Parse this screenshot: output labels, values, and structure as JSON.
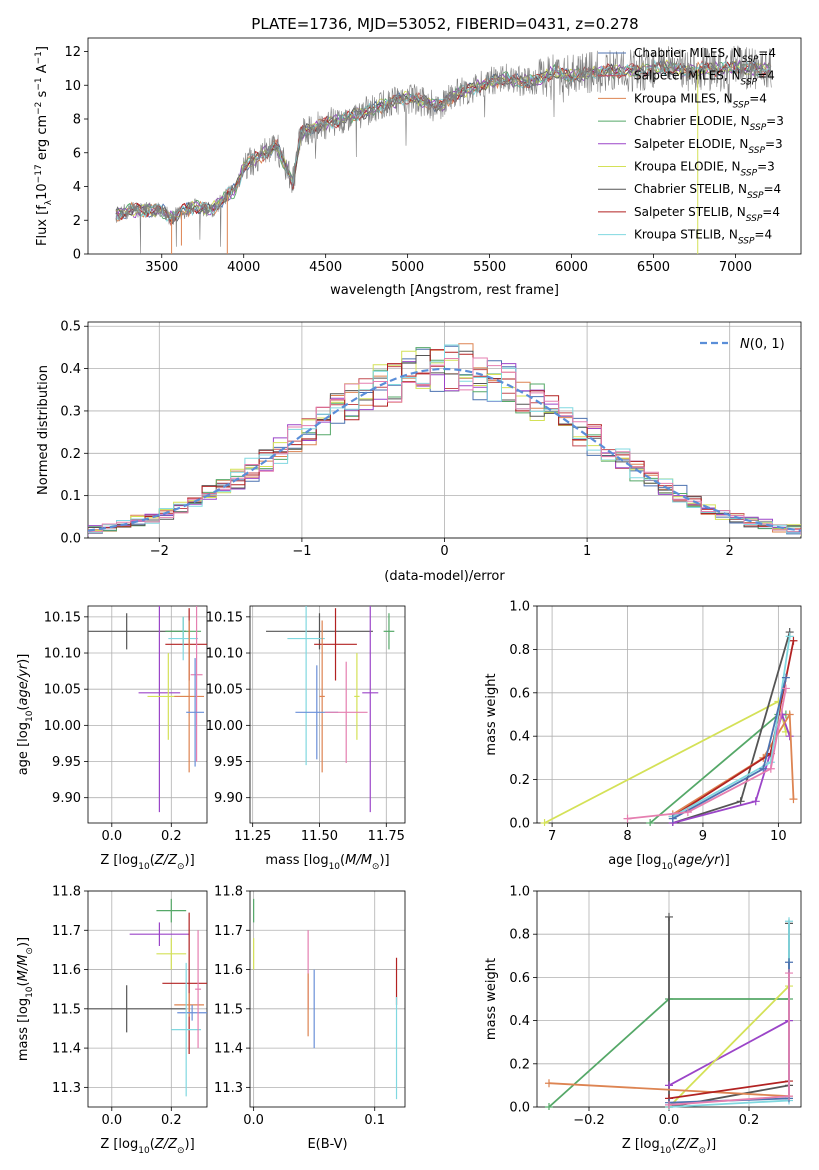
{
  "figure_title": "PLATE=1736, MJD=53052, FIBERID=0431, z=0.278",
  "colors": {
    "Chabrier MILES": "#4c72b0",
    "Salpeter MILES": "#c44e52",
    "Kroupa MILES": "#dd8452",
    "Chabrier ELODIE": "#55a868",
    "Salpeter ELODIE": "#9b45c8",
    "Kroupa ELODIE": "#d4e157",
    "Chabrier STELIB": "#555555",
    "Salpeter STELIB": "#b22222",
    "Kroupa STELIB": "#80d8e0",
    "extra_pink": "#e57fb0",
    "extra_blue": "#6a8fd8",
    "normal_curve": "#5a8ed8"
  },
  "chart_data": [
    {
      "id": "spectrum",
      "type": "line",
      "title": "PLATE=1736, MJD=53052, FIBERID=0431, z=0.278",
      "xlabel": "wavelength [Angstrom, rest frame]",
      "ylabel": "Flux [f_λ10^-17 erg cm^-2 s^-1 A^-1]",
      "xlim": [
        3050,
        7400
      ],
      "ylim": [
        0,
        12.8
      ],
      "xticks": [
        3500,
        4000,
        4500,
        5000,
        5500,
        6000,
        6500,
        7000
      ],
      "yticks": [
        0,
        2,
        4,
        6,
        8,
        10,
        12
      ],
      "legend_position": "right",
      "legend": [
        {
          "name": "Chabrier MILES",
          "nssp": "4"
        },
        {
          "name": "Salpeter MILES",
          "nssp": "4"
        },
        {
          "name": "Kroupa MILES",
          "nssp": "4"
        },
        {
          "name": "Chabrier ELODIE",
          "nssp": "3"
        },
        {
          "name": "Salpeter ELODIE",
          "nssp": "3"
        },
        {
          "name": "Kroupa ELODIE",
          "nssp": "3"
        },
        {
          "name": "Chabrier STELIB",
          "nssp": "4"
        },
        {
          "name": "Salpeter STELIB",
          "nssp": "4"
        },
        {
          "name": "Kroupa STELIB",
          "nssp": "4"
        }
      ],
      "continuum_x": [
        3220,
        3300,
        3400,
        3500,
        3560,
        3600,
        3700,
        3800,
        3850,
        3900,
        3950,
        4000,
        4100,
        4200,
        4300,
        4350,
        4400,
        4500,
        4600,
        4700,
        4800,
        4900,
        5000,
        5100,
        5200,
        5300,
        5400,
        5500,
        5600,
        5700,
        5800,
        5900,
        6000,
        6100,
        6200,
        6300,
        6400,
        6500,
        6600,
        6700,
        6800,
        6900,
        7000,
        7100,
        7220
      ],
      "continuum_y": [
        2.3,
        2.6,
        2.6,
        2.6,
        2.1,
        2.4,
        2.8,
        2.6,
        3.0,
        3.5,
        3.8,
        5.2,
        5.8,
        6.4,
        4.2,
        7.2,
        7.4,
        7.7,
        8.0,
        8.3,
        8.6,
        9.0,
        9.3,
        9.0,
        8.8,
        9.5,
        9.8,
        10.2,
        10.4,
        10.2,
        10.3,
        10.8,
        10.5,
        10.7,
        10.9,
        10.8,
        10.9,
        11.0,
        11.1,
        10.8,
        11.0,
        10.9,
        11.1,
        11.0,
        10.9
      ]
    },
    {
      "id": "residual_histogram",
      "type": "area",
      "xlabel": "(data-model)/error",
      "ylabel": "Normed distribution",
      "xlim": [
        -2.5,
        2.5
      ],
      "ylim": [
        0,
        0.51
      ],
      "xticks": [
        -2,
        -1,
        0,
        1,
        2
      ],
      "yticks": [
        0.0,
        0.1,
        0.2,
        0.3,
        0.4,
        0.5
      ],
      "grid": true,
      "legend": "N(0,1)",
      "legend_position": "top-right",
      "bin_width": 0.1
    },
    {
      "id": "z_vs_age",
      "type": "scatter",
      "xlabel": "Z [log10(Z/Z⊙)]",
      "ylabel": "age [log10(age/yr)]",
      "xlim": [
        -0.08,
        0.32
      ],
      "ylim": [
        9.865,
        10.165
      ],
      "xticks": [
        0.0,
        0.2
      ],
      "yticks": [
        9.9,
        9.95,
        10.0,
        10.05,
        10.1,
        10.15
      ],
      "grid": true,
      "points": [
        {
          "series": "Chabrier STELIB",
          "x": 0.05,
          "y": 10.13,
          "xerr": 0.2,
          "yerr": 0.025
        },
        {
          "series": "Chabrier ELODIE",
          "x": 0.24,
          "y": 10.13,
          "xerr": 0.06,
          "yerr": 0.02
        },
        {
          "series": "Salpeter ELODIE",
          "x": 0.16,
          "y": 10.045,
          "xerr": 0.07,
          "yerr": 0.165
        },
        {
          "series": "Salpeter STELIB",
          "x": 0.26,
          "y": 10.112,
          "xerr": 0.08,
          "yerr": 0.05
        },
        {
          "series": "Kroupa STELIB",
          "x": 0.24,
          "y": 10.12,
          "xerr": 0.05,
          "yerr": 0.03
        },
        {
          "series": "Kroupa ELODIE",
          "x": 0.19,
          "y": 10.04,
          "xerr": 0.07,
          "yerr": 0.06
        },
        {
          "series": "Kroupa MILES",
          "x": 0.26,
          "y": 10.04,
          "xerr": 0.05,
          "yerr": 0.105
        },
        {
          "series": "extra_pink",
          "x": 0.285,
          "y": 10.07,
          "xerr": 0.02,
          "yerr": 0.12
        },
        {
          "series": "extra_blue",
          "x": 0.28,
          "y": 10.018,
          "xerr": 0.03,
          "yerr": 0.075
        }
      ]
    },
    {
      "id": "mass_vs_age",
      "type": "scatter",
      "xlabel": "mass [log10(M/M⊙)]",
      "ylabel": "",
      "xlim": [
        11.24,
        11.82
      ],
      "ylim": [
        9.865,
        10.165
      ],
      "xticks": [
        11.25,
        11.5,
        11.75
      ],
      "yticks": [
        9.9,
        9.95,
        10.0,
        10.05,
        10.1,
        10.15
      ],
      "grid": true,
      "points": [
        {
          "series": "Chabrier STELIB",
          "x": 11.5,
          "y": 10.13,
          "xerr": 0.2,
          "yerr": 0.025
        },
        {
          "series": "Kroupa STELIB",
          "x": 11.45,
          "y": 10.12,
          "xerr": 0.07,
          "yerr": 0.175
        },
        {
          "series": "Salpeter STELIB",
          "x": 11.56,
          "y": 10.112,
          "xerr": 0.08,
          "yerr": 0.05
        },
        {
          "series": "Chabrier ELODIE",
          "x": 11.76,
          "y": 10.13,
          "xerr": 0.02,
          "yerr": 0.025
        },
        {
          "series": "Salpeter ELODIE",
          "x": 11.69,
          "y": 10.045,
          "xerr": 0.03,
          "yerr": 0.165
        },
        {
          "series": "Kroupa ELODIE",
          "x": 11.64,
          "y": 10.04,
          "xerr": 0.01,
          "yerr": 0.06
        },
        {
          "series": "Kroupa MILES",
          "x": 11.51,
          "y": 10.04,
          "xerr": 0.01,
          "yerr": 0.105
        },
        {
          "series": "extra_blue",
          "x": 11.49,
          "y": 10.018,
          "xerr": 0.08,
          "yerr": 0.065
        },
        {
          "series": "extra_pink",
          "x": 11.6,
          "y": 10.018,
          "xerr": 0.08,
          "yerr": 0.07
        }
      ]
    },
    {
      "id": "age_vs_massweight",
      "type": "line",
      "xlabel": "age [log10(age/yr)]",
      "ylabel": "mass weight",
      "xlim": [
        6.8,
        10.3
      ],
      "ylim": [
        0,
        1
      ],
      "xticks": [
        7,
        8,
        9,
        10
      ],
      "yticks": [
        0.0,
        0.2,
        0.4,
        0.6,
        0.8,
        1.0
      ],
      "grid": true,
      "series": [
        {
          "name": "Kroupa ELODIE",
          "x": [
            6.9,
            10.0,
            10.1
          ],
          "y": [
            0.0,
            0.56,
            0.42
          ]
        },
        {
          "name": "Chabrier ELODIE",
          "x": [
            8.3,
            10.0,
            10.1
          ],
          "y": [
            0.0,
            0.5,
            0.5
          ]
        },
        {
          "name": "Chabrier STELIB",
          "x": [
            8.6,
            9.5,
            10.15
          ],
          "y": [
            0.0,
            0.1,
            0.88
          ]
        },
        {
          "name": "Salpeter ELODIE",
          "x": [
            8.6,
            9.7,
            10.05,
            10.15
          ],
          "y": [
            0.0,
            0.1,
            0.5,
            0.4
          ]
        },
        {
          "name": "Kroupa MILES",
          "x": [
            8.6,
            9.8,
            10.15,
            10.2
          ],
          "y": [
            0.04,
            0.3,
            0.5,
            0.11
          ]
        },
        {
          "name": "Salpeter STELIB",
          "x": [
            8.6,
            9.9,
            10.2
          ],
          "y": [
            0.03,
            0.32,
            0.84
          ]
        },
        {
          "name": "Kroupa STELIB",
          "x": [
            8.6,
            9.9,
            10.15
          ],
          "y": [
            0.03,
            0.28,
            0.86
          ]
        },
        {
          "name": "Chabrier MILES",
          "x": [
            8.6,
            9.8,
            10.1
          ],
          "y": [
            0.02,
            0.25,
            0.67
          ]
        },
        {
          "name": "extra_pink",
          "x": [
            8.0,
            8.8,
            9.9,
            10.1
          ],
          "y": [
            0.02,
            0.05,
            0.25,
            0.62
          ]
        }
      ]
    },
    {
      "id": "z_vs_mass",
      "type": "scatter",
      "xlabel": "Z [log10(Z/Z⊙)]",
      "ylabel": "mass [log10(M/M⊙)]",
      "xlim": [
        -0.08,
        0.32
      ],
      "ylim": [
        11.25,
        11.8
      ],
      "xticks": [
        0.0,
        0.2
      ],
      "yticks": [
        11.3,
        11.4,
        11.5,
        11.6,
        11.7,
        11.8
      ],
      "grid": true,
      "points": [
        {
          "series": "Chabrier STELIB",
          "x": 0.05,
          "y": 11.5,
          "xerr": 0.2,
          "yerr": 0.06
        },
        {
          "series": "Chabrier ELODIE",
          "x": 0.2,
          "y": 11.75,
          "xerr": 0.05,
          "yerr": 0.03
        },
        {
          "series": "Salpeter ELODIE",
          "x": 0.16,
          "y": 11.69,
          "xerr": 0.1,
          "yerr": 0.03
        },
        {
          "series": "Kroupa ELODIE",
          "x": 0.2,
          "y": 11.64,
          "xerr": 0.05,
          "yerr": 0.04
        },
        {
          "series": "Salpeter STELIB",
          "x": 0.26,
          "y": 11.565,
          "xerr": 0.09,
          "yerr": 0.18
        },
        {
          "series": "Kroupa MILES",
          "x": 0.26,
          "y": 11.51,
          "xerr": 0.05,
          "yerr": 0.03
        },
        {
          "series": "extra_blue",
          "x": 0.27,
          "y": 11.49,
          "xerr": 0.05,
          "yerr": 0.02
        },
        {
          "series": "Kroupa STELIB",
          "x": 0.25,
          "y": 11.447,
          "xerr": 0.05,
          "yerr": 0.17
        },
        {
          "series": "extra_pink",
          "x": 0.29,
          "y": 11.55,
          "xerr": 0.01,
          "yerr": 0.15
        }
      ]
    },
    {
      "id": "ebv_vs_mass",
      "type": "scatter",
      "xlabel": "E(B-V)",
      "ylabel": "",
      "xlim": [
        -0.003,
        0.125
      ],
      "ylim": [
        11.25,
        11.8
      ],
      "xticks": [
        0.0,
        0.1
      ],
      "yticks": [
        11.3,
        11.4,
        11.5,
        11.6,
        11.7,
        11.8
      ],
      "grid": true,
      "points": [
        {
          "series": "Chabrier ELODIE",
          "x": 0.0,
          "y": 11.75,
          "xerr": 0,
          "yerr": 0.03
        },
        {
          "series": "Kroupa ELODIE",
          "x": 0.0,
          "y": 11.64,
          "xerr": 0,
          "yerr": 0.04
        },
        {
          "series": "extra_pink",
          "x": 0.045,
          "y": 11.6,
          "xerr": 0,
          "yerr": 0.1
        },
        {
          "series": "Kroupa MILES",
          "x": 0.045,
          "y": 11.51,
          "xerr": 0,
          "yerr": 0.08
        },
        {
          "series": "extra_blue",
          "x": 0.05,
          "y": 11.5,
          "xerr": 0,
          "yerr": 0.1
        },
        {
          "series": "Salpeter STELIB",
          "x": 0.118,
          "y": 11.57,
          "xerr": 0,
          "yerr": 0.06
        },
        {
          "series": "Kroupa STELIB",
          "x": 0.118,
          "y": 11.4,
          "xerr": 0,
          "yerr": 0.13
        }
      ]
    },
    {
      "id": "z_vs_massweight",
      "type": "line",
      "xlabel": "Z [log10(Z/Z⊙)]",
      "ylabel": "mass weight",
      "xlim": [
        -0.33,
        0.33
      ],
      "ylim": [
        0,
        1
      ],
      "xticks": [
        -0.2,
        0.0,
        0.2
      ],
      "yticks": [
        0.0,
        0.2,
        0.4,
        0.6,
        0.8,
        1.0
      ],
      "grid": true,
      "series": [
        {
          "name": "Chabrier ELODIE",
          "x": [
            -0.3,
            0.0,
            0.3
          ],
          "y": [
            0.0,
            0.5,
            0.5
          ]
        },
        {
          "name": "Chabrier STELIB",
          "x": [
            0.0,
            0.0,
            0.3,
            0.3
          ],
          "y": [
            0.88,
            0.0,
            0.1,
            0.85
          ]
        },
        {
          "name": "Salpeter ELODIE",
          "x": [
            0.0,
            0.3
          ],
          "y": [
            0.1,
            0.4
          ]
        },
        {
          "name": "Kroupa ELODIE",
          "x": [
            0.0,
            0.3
          ],
          "y": [
            0.0,
            0.56
          ]
        },
        {
          "name": "Kroupa MILES",
          "x": [
            -0.3,
            0.3
          ],
          "y": [
            0.11,
            0.05
          ]
        },
        {
          "name": "Salpeter STELIB",
          "x": [
            0.0,
            0.3
          ],
          "y": [
            0.04,
            0.12
          ]
        },
        {
          "name": "Kroupa STELIB",
          "x": [
            0.0,
            0.3,
            0.3
          ],
          "y": [
            0.0,
            0.03,
            0.86
          ]
        },
        {
          "name": "Chabrier MILES",
          "x": [
            0.0,
            0.3,
            0.3
          ],
          "y": [
            0.02,
            0.04,
            0.67
          ]
        },
        {
          "name": "extra_pink",
          "x": [
            0.0,
            0.3,
            0.3
          ],
          "y": [
            0.01,
            0.05,
            0.62
          ]
        }
      ]
    }
  ]
}
